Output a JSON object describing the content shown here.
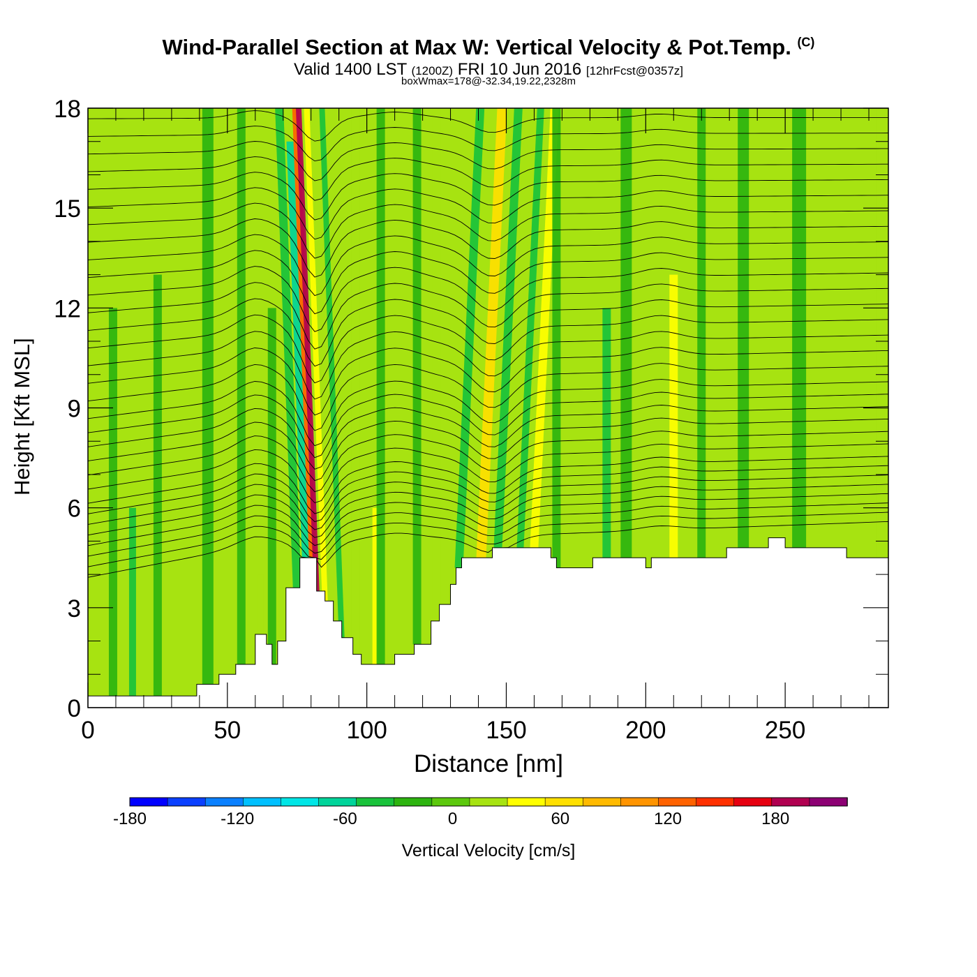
{
  "header": {
    "title": "Wind-Parallel Section at Max W: Vertical Velocity & Pot.Temp.",
    "copyright": "(C)",
    "valid_prefix": "Valid 1400 LST",
    "zulu": "(1200Z)",
    "date": "FRI 10 Jun 2016",
    "forecast": "[12hrFcst@0357z]",
    "boxwmax": "boxWmax=178@-32.34,19.22,2328m"
  },
  "chart_data": {
    "type": "heatmap",
    "title": "Wind-Parallel Section at Max W: Vertical Velocity & Pot.Temp.",
    "xlabel": "Distance [nm]",
    "ylabel": "Height [Kft MSL]",
    "xlim": [
      0,
      287
    ],
    "ylim": [
      0,
      18
    ],
    "x_ticks": [
      "0",
      "50",
      "100",
      "150",
      "200",
      "250"
    ],
    "y_ticks": [
      "0",
      "3",
      "6",
      "9",
      "12",
      "15",
      "18"
    ],
    "colorbar": {
      "label": "Vertical Velocity [cm/s]",
      "range": [
        -180,
        220
      ],
      "ticks": [
        "-180",
        "-120",
        "-60",
        "0",
        "60",
        "120",
        "180"
      ],
      "colors": [
        "#0000ff",
        "#0a40ff",
        "#0a80ff",
        "#00c0ff",
        "#00e6e6",
        "#00d49a",
        "#19c23b",
        "#2db40f",
        "#5cc80d",
        "#a7e311",
        "#ffff00",
        "#ffe000",
        "#ffba00",
        "#ff9400",
        "#ff6200",
        "#ff3000",
        "#e60010",
        "#b00050",
        "#8c0073"
      ]
    },
    "terrain_kft": [
      [
        0,
        0.35
      ],
      [
        39,
        0.35
      ],
      [
        39,
        0.7
      ],
      [
        47,
        0.7
      ],
      [
        47,
        1.0
      ],
      [
        53,
        1.0
      ],
      [
        53,
        1.3
      ],
      [
        60,
        1.3
      ],
      [
        60,
        2.2
      ],
      [
        64,
        2.2
      ],
      [
        64,
        1.9
      ],
      [
        66,
        1.9
      ],
      [
        66,
        1.3
      ],
      [
        68,
        1.3
      ],
      [
        68,
        2.0
      ],
      [
        71,
        2.0
      ],
      [
        71,
        3.6
      ],
      [
        76,
        3.6
      ],
      [
        76,
        4.5
      ],
      [
        82,
        4.5
      ],
      [
        82,
        3.5
      ],
      [
        85,
        3.5
      ],
      [
        85,
        3.2
      ],
      [
        88,
        3.2
      ],
      [
        88,
        2.6
      ],
      [
        91,
        2.6
      ],
      [
        91,
        2.1
      ],
      [
        95,
        2.1
      ],
      [
        95,
        1.6
      ],
      [
        98,
        1.6
      ],
      [
        98,
        1.3
      ],
      [
        110,
        1.3
      ],
      [
        110,
        1.6
      ],
      [
        117,
        1.6
      ],
      [
        117,
        1.9
      ],
      [
        123,
        1.9
      ],
      [
        123,
        2.6
      ],
      [
        126,
        2.6
      ],
      [
        126,
        3.1
      ],
      [
        130,
        3.1
      ],
      [
        130,
        3.7
      ],
      [
        132,
        3.7
      ],
      [
        132,
        4.2
      ],
      [
        134,
        4.2
      ],
      [
        134,
        4.5
      ],
      [
        145,
        4.5
      ],
      [
        145,
        4.8
      ],
      [
        166,
        4.8
      ],
      [
        166,
        4.5
      ],
      [
        168,
        4.5
      ],
      [
        168,
        4.2
      ],
      [
        181,
        4.2
      ],
      [
        181,
        4.5
      ],
      [
        200,
        4.5
      ],
      [
        200,
        4.2
      ],
      [
        202,
        4.2
      ],
      [
        202,
        4.5
      ],
      [
        229,
        4.5
      ],
      [
        229,
        4.8
      ],
      [
        244,
        4.8
      ],
      [
        244,
        5.1
      ],
      [
        250,
        5.1
      ],
      [
        250,
        4.8
      ],
      [
        272,
        4.8
      ],
      [
        272,
        4.5
      ],
      [
        287,
        4.5
      ]
    ],
    "bands": [
      {
        "x": 9,
        "w_nm": 3,
        "value": -30,
        "top": 12
      },
      {
        "x": 16,
        "w_nm": 2.5,
        "value": -40,
        "top": 6
      },
      {
        "x": 25,
        "w_nm": 3,
        "value": -30,
        "top": 13
      },
      {
        "x": 43,
        "w_nm": 4,
        "value": -30,
        "top": 18
      },
      {
        "x": 55,
        "w_nm": 3,
        "value": -20,
        "top": 18
      },
      {
        "x": 62,
        "w_nm": 2,
        "value": 30,
        "top": 4
      },
      {
        "x": 66,
        "w_nm": 3,
        "value": -30,
        "top": 12
      },
      {
        "x": 75,
        "w_nm": 3,
        "value": -50,
        "top": 18
      },
      {
        "x": 78,
        "w_nm": 2.5,
        "value": -60,
        "top": 17
      },
      {
        "x": 80.5,
        "w_nm": 2.5,
        "value": 120,
        "top": 18
      },
      {
        "x": 82,
        "w_nm": 2,
        "value": 178,
        "top": 18
      },
      {
        "x": 85,
        "w_nm": 2,
        "value": 50,
        "top": 18
      },
      {
        "x": 88,
        "w_nm": 2.5,
        "value": 30,
        "top": 18
      },
      {
        "x": 91,
        "w_nm": 2,
        "value": -40,
        "top": 18
      },
      {
        "x": 96,
        "w_nm": 3,
        "value": 30,
        "top": 18
      },
      {
        "x": 103,
        "w_nm": 2,
        "value": 40,
        "top": 6
      },
      {
        "x": 105,
        "w_nm": 3,
        "value": -30,
        "top": 18
      },
      {
        "x": 109,
        "w_nm": 3,
        "value": 20,
        "top": 18
      },
      {
        "x": 118,
        "w_nm": 3,
        "value": -30,
        "top": 18
      },
      {
        "x": 125,
        "w_nm": 3,
        "value": 30,
        "top": 18
      },
      {
        "x": 133,
        "w_nm": 3,
        "value": -35,
        "top": 18
      },
      {
        "x": 141,
        "w_nm": 3.5,
        "value": 70,
        "top": 18
      },
      {
        "x": 147,
        "w_nm": 3,
        "value": -50,
        "top": 18
      },
      {
        "x": 151,
        "w_nm": 3,
        "value": 20,
        "top": 18
      },
      {
        "x": 155,
        "w_nm": 2.5,
        "value": -40,
        "top": 18
      },
      {
        "x": 160,
        "w_nm": 3,
        "value": 50,
        "top": 18
      },
      {
        "x": 168,
        "w_nm": 3,
        "value": -30,
        "top": 18
      },
      {
        "x": 175,
        "w_nm": 3,
        "value": 20,
        "top": 18
      },
      {
        "x": 186,
        "w_nm": 3,
        "value": -40,
        "top": 12
      },
      {
        "x": 193,
        "w_nm": 4,
        "value": -20,
        "top": 18
      },
      {
        "x": 210,
        "w_nm": 3,
        "value": 40,
        "top": 13
      },
      {
        "x": 220,
        "w_nm": 3,
        "value": -30,
        "top": 18
      },
      {
        "x": 235,
        "w_nm": 4,
        "value": -30,
        "top": 18
      },
      {
        "x": 255,
        "w_nm": 5,
        "value": -30,
        "top": 18
      },
      {
        "x": 281,
        "w_nm": 3,
        "value": 30,
        "top": 18
      }
    ],
    "isentropes": [
      {
        "base": 4.7,
        "label": "",
        "label_x": 0
      },
      {
        "base": 5.0,
        "label": "",
        "label_x": 0
      },
      {
        "base": 5.3,
        "label": "",
        "label_x": 0
      },
      {
        "base": 5.6,
        "label": "",
        "label_x": 0
      },
      {
        "base": 5.9,
        "label": "",
        "label_x": 0
      },
      {
        "base": 6.2,
        "label": "",
        "label_x": 0
      },
      {
        "base": 6.5,
        "label": "",
        "label_x": 0
      },
      {
        "base": 6.8,
        "label": "",
        "label_x": 0
      },
      {
        "base": 7.2,
        "label": "",
        "label_x": 0
      },
      {
        "base": 7.6,
        "label": "",
        "label_x": 0
      },
      {
        "base": 8.0,
        "label": "",
        "label_x": 0
      },
      {
        "base": 8.4,
        "label": "",
        "label_x": 0
      },
      {
        "base": 8.8,
        "label": "",
        "label_x": 0
      },
      {
        "base": 9.2,
        "label": "",
        "label_x": 0
      },
      {
        "base": 9.7,
        "label": "",
        "label_x": 0
      },
      {
        "base": 10.2,
        "label": "",
        "label_x": 0
      },
      {
        "base": 10.7,
        "label": "",
        "label_x": 0
      },
      {
        "base": 11.2,
        "label": "",
        "label_x": 0
      },
      {
        "base": 11.7,
        "label": "",
        "label_x": 0
      },
      {
        "base": 12.2,
        "label": "",
        "label_x": 0
      },
      {
        "base": 12.7,
        "label": "",
        "label_x": 0
      },
      {
        "base": 13.2,
        "label": "",
        "label_x": 0
      },
      {
        "base": 13.7,
        "label": "",
        "label_x": 0
      },
      {
        "base": 14.2,
        "label": "",
        "label_x": 0
      },
      {
        "base": 14.7,
        "label": "",
        "label_x": 0
      },
      {
        "base": 15.2,
        "label": "",
        "label_x": 0
      },
      {
        "base": 15.7,
        "label": "",
        "label_x": 0
      },
      {
        "base": 16.2,
        "label": "",
        "label_x": 0
      },
      {
        "base": 16.7,
        "label": "",
        "label_x": 0
      },
      {
        "base": 17.2,
        "label": "",
        "label_x": 0
      },
      {
        "base": 17.7,
        "label": "",
        "label_x": 0
      }
    ]
  }
}
